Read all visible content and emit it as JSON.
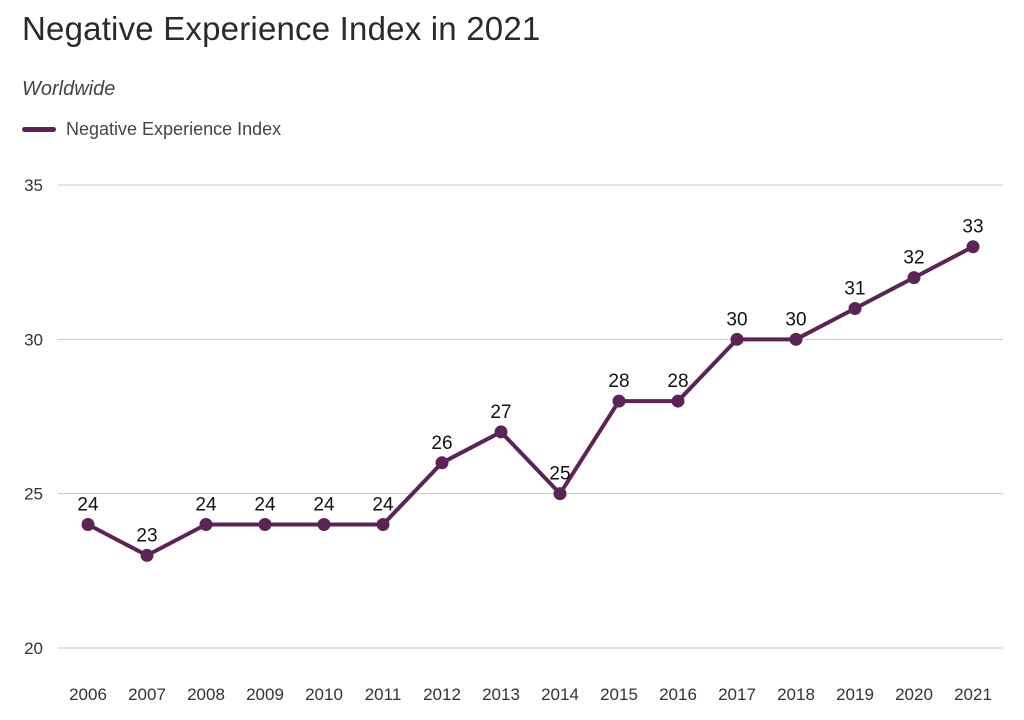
{
  "chart_data": {
    "type": "line",
    "title": "Negative Experience Index in 2021",
    "subtitle": "Worldwide",
    "categories": [
      "2006",
      "2007",
      "2008",
      "2009",
      "2010",
      "2011",
      "2012",
      "2013",
      "2014",
      "2015",
      "2016",
      "2017",
      "2018",
      "2019",
      "2020",
      "2021"
    ],
    "series": [
      {
        "name": "Negative Experience Index",
        "values": [
          24,
          23,
          24,
          24,
          24,
          24,
          26,
          27,
          25,
          28,
          28,
          30,
          30,
          31,
          32,
          33
        ],
        "color": "#5b2454"
      }
    ],
    "xlabel": "",
    "ylabel": "",
    "ylim": [
      20,
      35
    ],
    "yticks": [
      "20",
      "25",
      "30",
      "35"
    ],
    "grid": true,
    "legend": "top-left",
    "data_labels": true
  }
}
